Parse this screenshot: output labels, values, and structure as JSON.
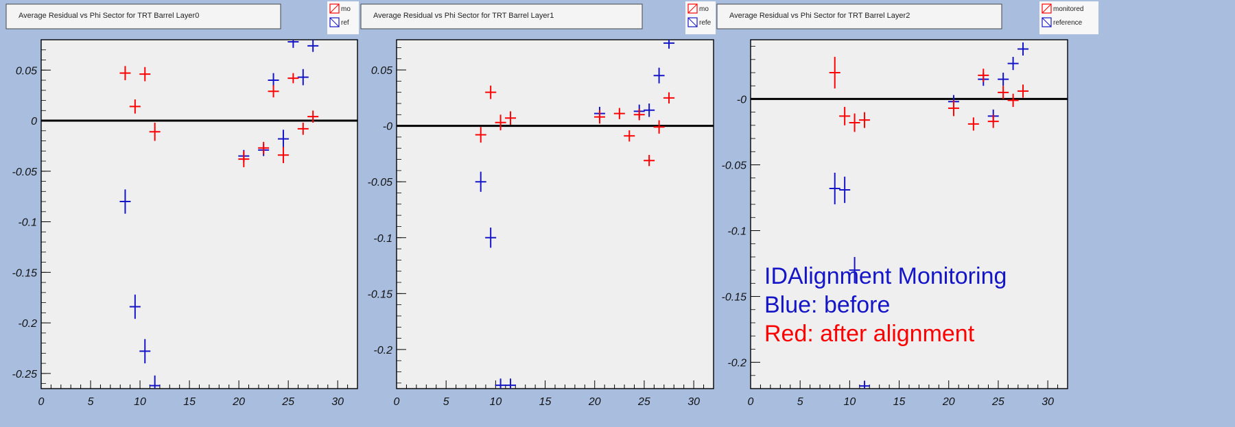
{
  "colors": {
    "background": "#a9bedf",
    "plot_area": "#efefef",
    "monitored": "#ff0000",
    "reference": "#1515c8",
    "zero_line": "#000000"
  },
  "annotation": {
    "line1": "IDAlignment Monitoring",
    "line2": "Blue: before",
    "line3": "Red: after alignment"
  },
  "chart_data": [
    {
      "type": "scatter",
      "title": "Average Residual vs Phi Sector for TRT Barrel Layer0",
      "legend_labels": [
        "mo",
        "ref"
      ],
      "xlim": [
        0,
        32
      ],
      "ylim": [
        -0.265,
        0.08
      ],
      "xticks": [
        0,
        5,
        10,
        15,
        20,
        25,
        30
      ],
      "xtick_labels": [
        "0",
        "5",
        "10",
        "15",
        "20",
        "25",
        "30"
      ],
      "yticks": [
        0.05,
        0,
        -0.05,
        -0.1,
        -0.15,
        -0.2,
        -0.25
      ],
      "ytick_labels": [
        "0.05",
        "0",
        "-0.05",
        "-0.1",
        "-0.15",
        "-0.2",
        "-0.25"
      ],
      "zero_line": 0,
      "series": [
        {
          "name": "monitored",
          "points": [
            {
              "x": 8.5,
              "y": 0.047,
              "err": 0.007
            },
            {
              "x": 9.5,
              "y": 0.014,
              "err": 0.007
            },
            {
              "x": 10.5,
              "y": 0.046,
              "err": 0.007
            },
            {
              "x": 11.5,
              "y": -0.011,
              "err": 0.009
            },
            {
              "x": 20.5,
              "y": -0.038,
              "err": 0.008
            },
            {
              "x": 22.5,
              "y": -0.027,
              "err": 0.006
            },
            {
              "x": 23.5,
              "y": 0.029,
              "err": 0.006
            },
            {
              "x": 24.5,
              "y": -0.034,
              "err": 0.008
            },
            {
              "x": 25.5,
              "y": 0.042,
              "err": 0.005
            },
            {
              "x": 26.5,
              "y": -0.008,
              "err": 0.006
            },
            {
              "x": 27.5,
              "y": 0.004,
              "err": 0.006
            }
          ]
        },
        {
          "name": "reference",
          "points": [
            {
              "x": 8.5,
              "y": -0.08,
              "err": 0.012
            },
            {
              "x": 9.5,
              "y": -0.184,
              "err": 0.012
            },
            {
              "x": 10.5,
              "y": -0.228,
              "err": 0.012
            },
            {
              "x": 11.5,
              "y": -0.262,
              "err": 0.01
            },
            {
              "x": 20.5,
              "y": -0.035,
              "err": 0.006
            },
            {
              "x": 22.5,
              "y": -0.029,
              "err": 0.006
            },
            {
              "x": 23.5,
              "y": 0.04,
              "err": 0.007
            },
            {
              "x": 24.5,
              "y": -0.018,
              "err": 0.009
            },
            {
              "x": 25.5,
              "y": 0.078,
              "err": 0.006
            },
            {
              "x": 26.5,
              "y": 0.043,
              "err": 0.008
            },
            {
              "x": 27.5,
              "y": 0.074,
              "err": 0.006
            }
          ]
        }
      ]
    },
    {
      "type": "scatter",
      "title": "Average Residual vs Phi Sector for TRT Barrel Layer1",
      "legend_labels": [
        "mo",
        "refe"
      ],
      "xlim": [
        0,
        32
      ],
      "ylim": [
        -0.235,
        0.077
      ],
      "xticks": [
        0,
        5,
        10,
        15,
        20,
        25,
        30
      ],
      "xtick_labels": [
        "0",
        "5",
        "10",
        "15",
        "20",
        "25",
        "30"
      ],
      "yticks": [
        0.05,
        0,
        -0.05,
        -0.1,
        -0.15,
        -0.2
      ],
      "ytick_labels": [
        "0.05",
        "-0",
        "-0.05",
        "-0.1",
        "-0.15",
        "-0.2"
      ],
      "zero_line": 0,
      "series": [
        {
          "name": "monitored",
          "points": [
            {
              "x": 8.5,
              "y": -0.008,
              "err": 0.007
            },
            {
              "x": 9.5,
              "y": 0.03,
              "err": 0.006
            },
            {
              "x": 10.5,
              "y": 0.003,
              "err": 0.007
            },
            {
              "x": 11.5,
              "y": 0.007,
              "err": 0.006
            },
            {
              "x": 20.5,
              "y": 0.008,
              "err": 0.006
            },
            {
              "x": 22.5,
              "y": 0.011,
              "err": 0.005
            },
            {
              "x": 23.5,
              "y": -0.009,
              "err": 0.005
            },
            {
              "x": 24.5,
              "y": 0.01,
              "err": 0.005
            },
            {
              "x": 25.5,
              "y": -0.031,
              "err": 0.005
            },
            {
              "x": 26.5,
              "y": -0.001,
              "err": 0.006
            },
            {
              "x": 27.5,
              "y": 0.025,
              "err": 0.005
            }
          ]
        },
        {
          "name": "reference",
          "points": [
            {
              "x": 8.5,
              "y": -0.05,
              "err": 0.009
            },
            {
              "x": 9.5,
              "y": -0.1,
              "err": 0.009
            },
            {
              "x": 10.5,
              "y": -0.232,
              "err": 0.006
            },
            {
              "x": 11.5,
              "y": -0.232,
              "err": 0.006
            },
            {
              "x": 20.5,
              "y": 0.011,
              "err": 0.006
            },
            {
              "x": 24.5,
              "y": 0.013,
              "err": 0.006
            },
            {
              "x": 25.5,
              "y": 0.014,
              "err": 0.006
            },
            {
              "x": 26.5,
              "y": 0.045,
              "err": 0.007
            },
            {
              "x": 27.5,
              "y": 0.074,
              "err": 0.005
            }
          ]
        }
      ]
    },
    {
      "type": "scatter",
      "title": "Average Residual vs Phi Sector for TRT Barrel Layer2",
      "legend_labels": [
        "monitored",
        "reference"
      ],
      "xlim": [
        0,
        32
      ],
      "ylim": [
        -0.22,
        0.045
      ],
      "xticks": [
        0,
        5,
        10,
        15,
        20,
        25,
        30
      ],
      "xtick_labels": [
        "0",
        "5",
        "10",
        "15",
        "20",
        "25",
        "30"
      ],
      "yticks": [
        0,
        -0.05,
        -0.1,
        -0.15,
        -0.2
      ],
      "ytick_labels": [
        "-0",
        "-0.05",
        "-0.1",
        "-0.15",
        "-0.2"
      ],
      "zero_line": 0,
      "series": [
        {
          "name": "monitored",
          "points": [
            {
              "x": 8.5,
              "y": 0.02,
              "err": 0.012
            },
            {
              "x": 9.5,
              "y": -0.013,
              "err": 0.007
            },
            {
              "x": 10.5,
              "y": -0.018,
              "err": 0.007
            },
            {
              "x": 11.5,
              "y": -0.016,
              "err": 0.006
            },
            {
              "x": 20.5,
              "y": -0.007,
              "err": 0.006
            },
            {
              "x": 22.5,
              "y": -0.019,
              "err": 0.005
            },
            {
              "x": 23.5,
              "y": 0.018,
              "err": 0.005
            },
            {
              "x": 24.5,
              "y": -0.017,
              "err": 0.005
            },
            {
              "x": 25.5,
              "y": 0.005,
              "err": 0.005
            },
            {
              "x": 26.5,
              "y": -0.001,
              "err": 0.005
            },
            {
              "x": 27.5,
              "y": 0.006,
              "err": 0.005
            }
          ]
        },
        {
          "name": "reference",
          "points": [
            {
              "x": 8.5,
              "y": -0.068,
              "err": 0.012
            },
            {
              "x": 9.5,
              "y": -0.069,
              "err": 0.01
            },
            {
              "x": 10.5,
              "y": -0.13,
              "err": 0.01
            },
            {
              "x": 11.5,
              "y": -0.218,
              "err": 0.004
            },
            {
              "x": 20.5,
              "y": -0.002,
              "err": 0.005
            },
            {
              "x": 23.5,
              "y": 0.015,
              "err": 0.005
            },
            {
              "x": 24.5,
              "y": -0.013,
              "err": 0.005
            },
            {
              "x": 25.5,
              "y": 0.015,
              "err": 0.005
            },
            {
              "x": 26.5,
              "y": 0.027,
              "err": 0.005
            },
            {
              "x": 27.5,
              "y": 0.038,
              "err": 0.005
            }
          ]
        }
      ]
    }
  ]
}
